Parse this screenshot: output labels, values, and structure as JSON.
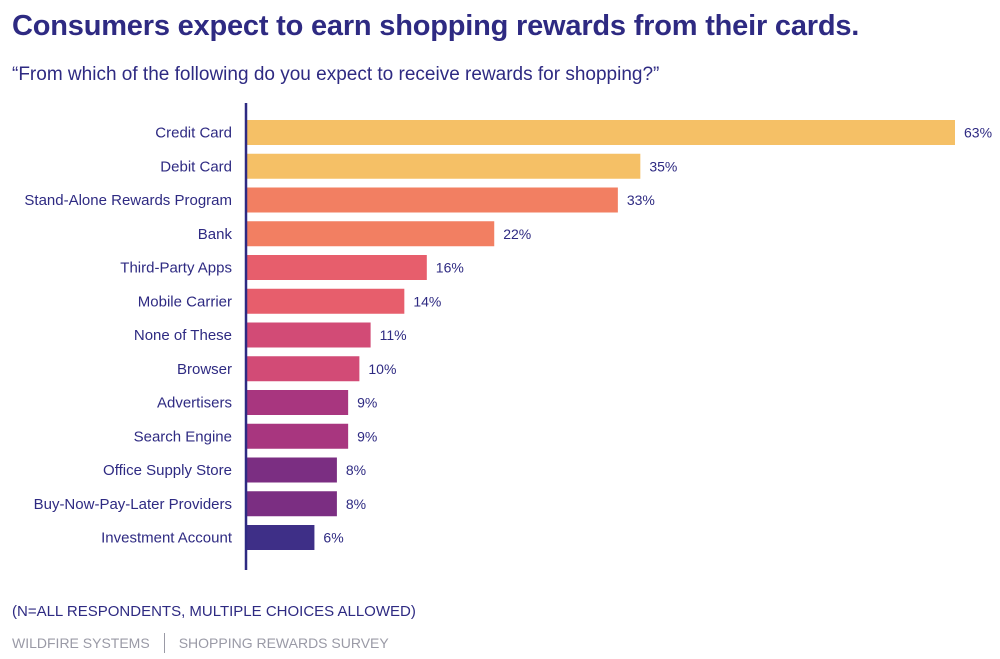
{
  "header": {
    "title": "Consumers expect to earn shopping rewards from their cards.",
    "subtitle": "“From which of the following do you expect to receive rewards for shopping?”"
  },
  "footnote": "(N=ALL RESPONDENTS, MULTIPLE CHOICES ALLOWED)",
  "footer": {
    "left": "WILDFIRE SYSTEMS",
    "right": "SHOPPING REWARDS SURVEY"
  },
  "chart_data": {
    "type": "bar",
    "orientation": "horizontal",
    "title": "Consumers expect to earn shopping rewards from their cards.",
    "subtitle": "“From which of the following do you expect to receive rewards for shopping?”",
    "unit": "%",
    "categories": [
      "Credit Card",
      "Debit Card",
      "Stand-Alone Rewards Program",
      "Bank",
      "Third-Party Apps",
      "Mobile Carrier",
      "None of These",
      "Browser",
      "Advertisers",
      "Search Engine",
      "Office Supply Store",
      "Buy-Now-Pay-Later Providers",
      "Investment Account"
    ],
    "values": [
      63,
      35,
      33,
      22,
      16,
      14,
      11,
      10,
      9,
      9,
      8,
      8,
      6
    ],
    "value_labels": [
      "63%",
      "35%",
      "33%",
      "22%",
      "16%",
      "14%",
      "11%",
      "10%",
      "9%",
      "9%",
      "8%",
      "8%",
      "6%"
    ],
    "colors": [
      "#f5c066",
      "#f5c066",
      "#f27f62",
      "#f27f62",
      "#e75e6c",
      "#e75e6c",
      "#d24b76",
      "#d24b76",
      "#a8367f",
      "#a8367f",
      "#7b2e82",
      "#7b2e82",
      "#3e2f87"
    ],
    "axis_color": "#2e2a82",
    "grid": false,
    "legend": "none",
    "xlim": [
      0,
      63
    ]
  }
}
